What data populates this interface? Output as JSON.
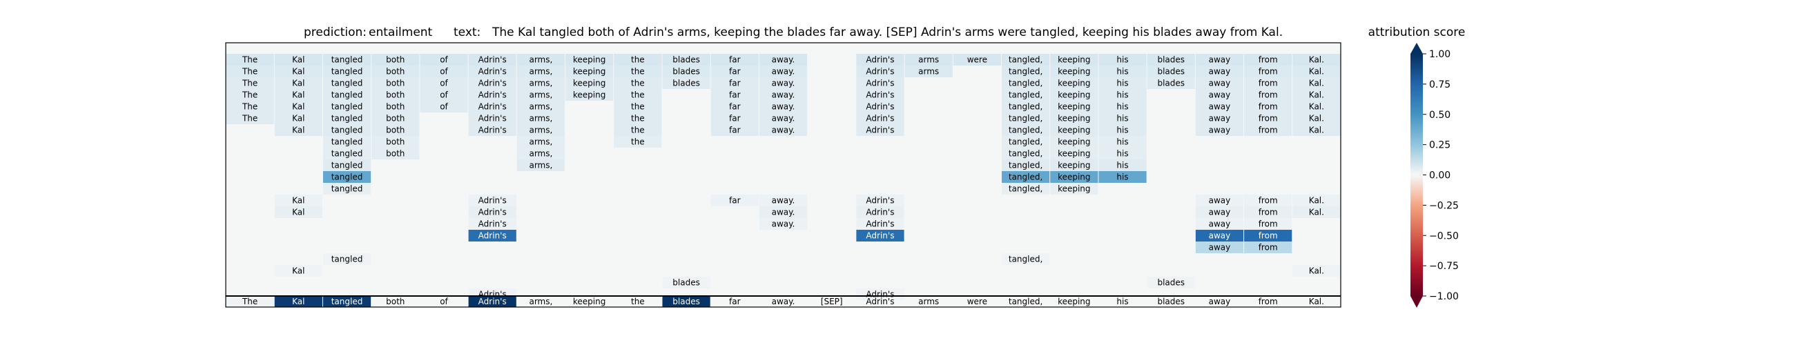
{
  "title": {
    "prediction_label": "prediction:",
    "prediction_value": "entailment",
    "text_label": "text:",
    "text_value": "The Kal tangled both of Adrin's arms, keeping the blades far away. [SEP] Adrin's arms were tangled, keeping his blades away from Kal."
  },
  "colorbar": {
    "label": "attribution score",
    "ticks": [
      "1.00",
      "0.75",
      "0.50",
      "0.25",
      "0.00",
      "−0.25",
      "−0.50",
      "−0.75",
      "−1.00"
    ],
    "tick_values": [
      1.0,
      0.75,
      0.5,
      0.25,
      0.0,
      -0.25,
      -0.5,
      -0.75,
      -1.0
    ],
    "colormap": "RdBu",
    "extend": "both"
  },
  "colors": {
    "grid_background": "#f5f7f7",
    "frame": "#000000",
    "bottom_highlight": "#08306b"
  },
  "chart_data": {
    "type": "heatmap",
    "tokens": [
      "The",
      "Kal",
      "tangled",
      "both",
      "of",
      "Adrin's",
      "arms,",
      "keeping",
      "the",
      "blades",
      "far",
      "away.",
      "[SEP]",
      "Adrin's",
      "arms",
      "were",
      "tangled,",
      "keeping",
      "his",
      "blades",
      "away",
      "from",
      "Kal."
    ],
    "bottom_row_scores": [
      0.02,
      0.95,
      0.95,
      0.0,
      0.0,
      0.98,
      0.0,
      0.0,
      0.0,
      0.98,
      0.0,
      0.0,
      0.0,
      0.0,
      0.0,
      0.0,
      0.0,
      0.0,
      0.0,
      0.0,
      0.0,
      0.0,
      0.0
    ],
    "rows": [
      {
        "cells": [
          [
            0,
            0.08
          ],
          [
            1,
            0.08
          ],
          [
            2,
            0.08
          ],
          [
            3,
            0.08
          ],
          [
            4,
            0.08
          ],
          [
            5,
            0.08
          ],
          [
            6,
            0.08
          ],
          [
            7,
            0.08
          ],
          [
            8,
            0.08
          ],
          [
            9,
            0.08
          ],
          [
            10,
            0.08
          ],
          [
            11,
            0.08
          ],
          [
            13,
            0.08
          ],
          [
            14,
            0.08
          ],
          [
            15,
            0.08
          ],
          [
            16,
            0.08
          ],
          [
            17,
            0.08
          ],
          [
            18,
            0.08
          ],
          [
            19,
            0.08
          ],
          [
            20,
            0.08
          ],
          [
            21,
            0.08
          ],
          [
            22,
            0.08
          ]
        ]
      },
      {
        "cells": [
          [
            0,
            0.07
          ],
          [
            1,
            0.07
          ],
          [
            2,
            0.07
          ],
          [
            3,
            0.07
          ],
          [
            4,
            0.07
          ],
          [
            5,
            0.07
          ],
          [
            6,
            0.07
          ],
          [
            7,
            0.07
          ],
          [
            8,
            0.07
          ],
          [
            9,
            0.07
          ],
          [
            10,
            0.07
          ],
          [
            11,
            0.07
          ],
          [
            13,
            0.07
          ],
          [
            14,
            0.07
          ],
          [
            16,
            0.07
          ],
          [
            17,
            0.07
          ],
          [
            18,
            0.07
          ],
          [
            19,
            0.07
          ],
          [
            20,
            0.07
          ],
          [
            21,
            0.07
          ],
          [
            22,
            0.07
          ]
        ]
      },
      {
        "cells": [
          [
            0,
            0.06
          ],
          [
            1,
            0.06
          ],
          [
            2,
            0.06
          ],
          [
            3,
            0.06
          ],
          [
            4,
            0.06
          ],
          [
            5,
            0.06
          ],
          [
            6,
            0.06
          ],
          [
            7,
            0.06
          ],
          [
            8,
            0.06
          ],
          [
            9,
            0.06
          ],
          [
            10,
            0.06
          ],
          [
            11,
            0.06
          ],
          [
            13,
            0.06
          ],
          [
            16,
            0.06
          ],
          [
            17,
            0.06
          ],
          [
            18,
            0.06
          ],
          [
            19,
            0.06
          ],
          [
            20,
            0.06
          ],
          [
            21,
            0.06
          ],
          [
            22,
            0.06
          ]
        ]
      },
      {
        "cells": [
          [
            0,
            0.06
          ],
          [
            1,
            0.06
          ],
          [
            2,
            0.06
          ],
          [
            3,
            0.06
          ],
          [
            4,
            0.06
          ],
          [
            5,
            0.06
          ],
          [
            6,
            0.06
          ],
          [
            7,
            0.06
          ],
          [
            8,
            0.06
          ],
          [
            10,
            0.06
          ],
          [
            11,
            0.06
          ],
          [
            13,
            0.06
          ],
          [
            16,
            0.06
          ],
          [
            17,
            0.06
          ],
          [
            18,
            0.06
          ],
          [
            20,
            0.06
          ],
          [
            21,
            0.06
          ],
          [
            22,
            0.06
          ]
        ]
      },
      {
        "cells": [
          [
            0,
            0.06
          ],
          [
            1,
            0.06
          ],
          [
            2,
            0.06
          ],
          [
            3,
            0.06
          ],
          [
            4,
            0.06
          ],
          [
            5,
            0.06
          ],
          [
            6,
            0.06
          ],
          [
            8,
            0.06
          ],
          [
            10,
            0.06
          ],
          [
            11,
            0.06
          ],
          [
            13,
            0.06
          ],
          [
            16,
            0.06
          ],
          [
            17,
            0.06
          ],
          [
            18,
            0.06
          ],
          [
            20,
            0.06
          ],
          [
            21,
            0.06
          ],
          [
            22,
            0.06
          ]
        ]
      },
      {
        "cells": [
          [
            0,
            0.06
          ],
          [
            1,
            0.06
          ],
          [
            2,
            0.06
          ],
          [
            3,
            0.06
          ],
          [
            5,
            0.06
          ],
          [
            6,
            0.06
          ],
          [
            8,
            0.06
          ],
          [
            10,
            0.06
          ],
          [
            11,
            0.06
          ],
          [
            13,
            0.06
          ],
          [
            16,
            0.06
          ],
          [
            17,
            0.06
          ],
          [
            18,
            0.06
          ],
          [
            20,
            0.06
          ],
          [
            21,
            0.06
          ],
          [
            22,
            0.06
          ]
        ]
      },
      {
        "cells": [
          [
            1,
            0.06
          ],
          [
            2,
            0.06
          ],
          [
            3,
            0.06
          ],
          [
            5,
            0.06
          ],
          [
            6,
            0.06
          ],
          [
            8,
            0.06
          ],
          [
            10,
            0.06
          ],
          [
            11,
            0.06
          ],
          [
            13,
            0.06
          ],
          [
            16,
            0.06
          ],
          [
            17,
            0.06
          ],
          [
            18,
            0.06
          ],
          [
            20,
            0.06
          ],
          [
            21,
            0.06
          ],
          [
            22,
            0.06
          ]
        ]
      },
      {
        "cells": [
          [
            2,
            0.05
          ],
          [
            3,
            0.05
          ],
          [
            6,
            0.05
          ],
          [
            8,
            0.05
          ],
          [
            16,
            0.05
          ],
          [
            17,
            0.05
          ],
          [
            18,
            0.05
          ]
        ]
      },
      {
        "cells": [
          [
            2,
            0.05
          ],
          [
            3,
            0.05
          ],
          [
            6,
            0.05
          ],
          [
            16,
            0.05
          ],
          [
            17,
            0.05
          ],
          [
            18,
            0.05
          ]
        ]
      },
      {
        "cells": [
          [
            2,
            0.06
          ],
          [
            6,
            0.06
          ],
          [
            16,
            0.06
          ],
          [
            17,
            0.06
          ],
          [
            18,
            0.06
          ]
        ]
      },
      {
        "cells": [
          [
            2,
            0.4
          ],
          [
            16,
            0.4
          ],
          [
            17,
            0.4
          ],
          [
            18,
            0.4
          ]
        ]
      },
      {
        "cells": [
          [
            2,
            0.04
          ],
          [
            16,
            0.04
          ],
          [
            17,
            0.04
          ]
        ]
      },
      {
        "cells": [
          [
            1,
            0.03
          ],
          [
            5,
            0.03
          ],
          [
            10,
            0.03
          ],
          [
            11,
            0.03
          ],
          [
            13,
            0.03
          ],
          [
            20,
            0.03
          ],
          [
            21,
            0.03
          ],
          [
            22,
            0.03
          ]
        ]
      },
      {
        "cells": [
          [
            1,
            0.04
          ],
          [
            5,
            0.04
          ],
          [
            11,
            0.04
          ],
          [
            13,
            0.04
          ],
          [
            20,
            0.04
          ],
          [
            21,
            0.04
          ],
          [
            22,
            0.04
          ]
        ]
      },
      {
        "cells": [
          [
            5,
            0.03
          ],
          [
            11,
            0.03
          ],
          [
            13,
            0.03
          ],
          [
            20,
            0.03
          ],
          [
            21,
            0.03
          ]
        ]
      },
      {
        "cells": [
          [
            5,
            0.7
          ],
          [
            13,
            0.7
          ],
          [
            20,
            0.72
          ],
          [
            21,
            0.72
          ]
        ]
      },
      {
        "cells": [
          [
            20,
            0.15
          ],
          [
            21,
            0.15
          ]
        ]
      },
      {
        "cells": [
          [
            2,
            0.02
          ],
          [
            16,
            0.02
          ]
        ]
      },
      {
        "cells": [
          [
            1,
            0.02
          ],
          [
            22,
            0.02
          ]
        ]
      },
      {
        "cells": [
          [
            9,
            0.02
          ],
          [
            19,
            0.02
          ]
        ]
      },
      {
        "cells": [
          [
            5,
            0.02
          ],
          [
            13,
            0.02
          ]
        ]
      }
    ]
  }
}
